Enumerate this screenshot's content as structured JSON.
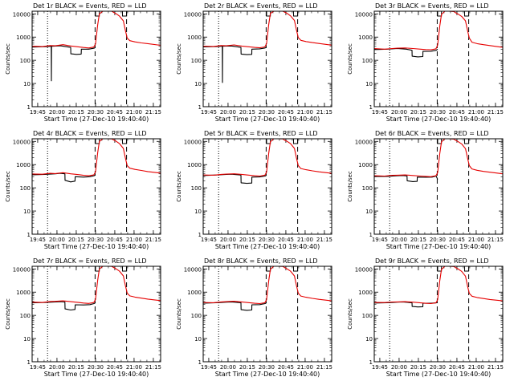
{
  "figure": {
    "rows": 3,
    "cols": 3,
    "colors": {
      "events": "#000000",
      "lld": "#e60000",
      "axes": "#000000",
      "background": "#ffffff"
    },
    "xaxis": {
      "label": "Start Time (27-Dec-10 19:40:40)",
      "tick_labels": [
        "19:45",
        "20:00",
        "20:15",
        "20:30",
        "20:45",
        "21:00",
        "21:15"
      ],
      "tick_values_min": [
        4.33,
        19.33,
        34.33,
        49.33,
        64.33,
        79.33,
        94.33
      ],
      "xlim_min": [
        0,
        100
      ]
    },
    "yaxis": {
      "label": "Counts/sec",
      "scale": "log",
      "tick_labels": [
        "1",
        "10",
        "100",
        "1000",
        "10000"
      ],
      "tick_values": [
        1,
        10,
        100,
        1000,
        10000
      ],
      "ylim": [
        1,
        13000
      ]
    }
  },
  "chart_data": [
    {
      "type": "line",
      "title": "Det 1r BLACK = Events, RED = LLD",
      "xlabel": "Start Time (27-Dec-10 19:40:40)",
      "ylabel": "Counts/sec",
      "markers": {
        "dotted_x": [
          12
        ],
        "dashed_x": [
          49,
          73.5
        ]
      },
      "rect_markers_x": [
        [
          49.2,
          52.3
        ],
        [
          70.3,
          73.5
        ]
      ],
      "series": [
        {
          "name": "Events",
          "color": "#000000",
          "x": [
            0,
            10,
            14.9,
            15,
            15.1,
            22,
            30,
            30.1,
            34.5,
            38.2,
            38.3,
            44,
            48.2,
            49.3
          ],
          "y": [
            370,
            385,
            400,
            13,
            400,
            420,
            360,
            190,
            180,
            185,
            300,
            300,
            330,
            360
          ]
        },
        {
          "name": "LLD",
          "color": "#e60000",
          "x": [
            0,
            8,
            14,
            18,
            24,
            30,
            36,
            40,
            44,
            48,
            49.3,
            51,
            52.3,
            55,
            58,
            62,
            63.5,
            65,
            68,
            71,
            72.5,
            74,
            76,
            80,
            85,
            90,
            100
          ],
          "y": [
            400,
            390,
            430,
            420,
            470,
            415,
            380,
            355,
            340,
            370,
            500,
            3300,
            10000,
            14000,
            14000,
            13000,
            11500,
            10500,
            8000,
            5000,
            2000,
            900,
            700,
            620,
            560,
            520,
            440
          ]
        }
      ]
    },
    {
      "type": "line",
      "title": "Det 2r BLACK = Events, RED = LLD",
      "xlabel": "Start Time (27-Dec-10 19:40:40)",
      "ylabel": "Counts/sec",
      "markers": {
        "dotted_x": [
          12
        ],
        "dashed_x": [
          49,
          73.5
        ]
      },
      "rect_markers_x": [
        [
          49.2,
          52.3
        ],
        [
          70.3,
          73.5
        ]
      ],
      "series": [
        {
          "name": "Events",
          "color": "#000000",
          "x": [
            0,
            10,
            14.9,
            15,
            15.1,
            22,
            29.4,
            29.5,
            34,
            37.8,
            37.9,
            44,
            48.2,
            49.3
          ],
          "y": [
            375,
            390,
            405,
            11,
            405,
            415,
            360,
            185,
            175,
            180,
            300,
            310,
            340,
            370
          ]
        },
        {
          "name": "LLD",
          "color": "#e60000",
          "x": [
            0,
            8,
            14,
            18,
            24,
            30,
            36,
            40,
            44,
            48,
            49.3,
            51,
            52.3,
            55,
            58,
            62,
            63.5,
            65,
            68,
            71,
            72.5,
            74,
            76,
            80,
            85,
            90,
            100
          ],
          "y": [
            405,
            395,
            430,
            420,
            460,
            410,
            380,
            360,
            345,
            375,
            520,
            3500,
            10500,
            14000,
            14000,
            13000,
            11800,
            10800,
            8200,
            5200,
            2100,
            950,
            720,
            640,
            580,
            530,
            450
          ]
        }
      ]
    },
    {
      "type": "line",
      "title": "Det 3r BLACK = Events, RED = LLD",
      "xlabel": "Start Time (27-Dec-10 19:40:40)",
      "ylabel": "Counts/sec",
      "markers": {
        "dotted_x": [
          12
        ],
        "dashed_x": [
          49,
          73.5
        ]
      },
      "rect_markers_x": [
        [
          49.2,
          52.3
        ],
        [
          70.3,
          73.5
        ]
      ],
      "series": [
        {
          "name": "Events",
          "color": "#000000",
          "x": [
            0,
            10,
            18,
            25,
            29.4,
            29.5,
            34,
            37.8,
            37.9,
            44,
            48.2,
            49.3
          ],
          "y": [
            290,
            300,
            320,
            300,
            270,
            150,
            140,
            145,
            240,
            245,
            270,
            300
          ]
        },
        {
          "name": "LLD",
          "color": "#e60000",
          "x": [
            0,
            8,
            14,
            18,
            24,
            30,
            36,
            40,
            44,
            48,
            49.3,
            51,
            52.3,
            55,
            58,
            62,
            63.5,
            65,
            68,
            71,
            72.5,
            74,
            76,
            80,
            85,
            90,
            100
          ],
          "y": [
            320,
            300,
            320,
            330,
            340,
            320,
            300,
            290,
            285,
            310,
            450,
            3000,
            9500,
            13000,
            13500,
            12500,
            11000,
            10000,
            7800,
            5000,
            2000,
            900,
            600,
            520,
            470,
            430,
            360
          ]
        }
      ]
    },
    {
      "type": "line",
      "title": "Det 4r BLACK = Events, RED = LLD",
      "xlabel": "Start Time (27-Dec-10 19:40:40)",
      "ylabel": "Counts/sec",
      "markers": {
        "dotted_x": [
          12
        ],
        "dashed_x": [
          49,
          73.5
        ]
      },
      "rect_markers_x": [
        [
          49.2,
          52.3
        ],
        [
          70.3,
          73.5
        ]
      ],
      "series": [
        {
          "name": "Events",
          "color": "#000000",
          "x": [
            0,
            10,
            18,
            22,
            25.5,
            25.6,
            30,
            33.4,
            33.5,
            40,
            45,
            48.2,
            49.3
          ],
          "y": [
            365,
            380,
            400,
            420,
            400,
            210,
            180,
            195,
            300,
            290,
            300,
            330,
            360
          ]
        },
        {
          "name": "LLD",
          "color": "#e60000",
          "x": [
            0,
            8,
            14,
            18,
            24,
            30,
            36,
            40,
            44,
            48,
            49.3,
            51,
            52.3,
            55,
            58,
            62,
            63.5,
            65,
            68,
            71,
            72.5,
            74,
            76,
            80,
            85,
            90,
            100
          ],
          "y": [
            395,
            385,
            420,
            410,
            450,
            400,
            370,
            345,
            330,
            360,
            480,
            3200,
            9800,
            14000,
            14000,
            12800,
            11500,
            10500,
            8000,
            5000,
            2000,
            900,
            700,
            620,
            560,
            500,
            430
          ]
        }
      ]
    },
    {
      "type": "line",
      "title": "Det 5r BLACK = Events, RED = LLD",
      "xlabel": "Start Time (27-Dec-10 19:40:40)",
      "ylabel": "Counts/sec",
      "markers": {
        "dotted_x": [
          12
        ],
        "dashed_x": [
          49,
          73.5
        ]
      },
      "rect_markers_x": [
        [
          49.2,
          52.3
        ],
        [
          70.3,
          73.5
        ]
      ],
      "series": [
        {
          "name": "Events",
          "color": "#000000",
          "x": [
            0,
            10,
            18,
            22,
            29.4,
            29.5,
            34,
            37.8,
            37.9,
            44,
            48.2,
            49.3
          ],
          "y": [
            340,
            355,
            375,
            385,
            355,
            165,
            155,
            160,
            290,
            295,
            320,
            350
          ]
        },
        {
          "name": "LLD",
          "color": "#e60000",
          "x": [
            0,
            8,
            14,
            18,
            24,
            30,
            36,
            40,
            44,
            48,
            49.3,
            51,
            52.3,
            55,
            58,
            62,
            63.5,
            65,
            68,
            71,
            72.5,
            74,
            76,
            80,
            85,
            90,
            100
          ],
          "y": [
            360,
            350,
            380,
            390,
            400,
            380,
            350,
            330,
            320,
            350,
            470,
            3100,
            9700,
            13500,
            13800,
            12800,
            11200,
            10300,
            8000,
            5000,
            2000,
            900,
            680,
            600,
            540,
            490,
            420
          ]
        }
      ]
    },
    {
      "type": "line",
      "title": "Det 6r BLACK = Events, RED = LLD",
      "xlabel": "Start Time (27-Dec-10 19:40:40)",
      "ylabel": "Counts/sec",
      "markers": {
        "dotted_x": [
          12
        ],
        "dashed_x": [
          49,
          73.5
        ]
      },
      "rect_markers_x": [
        [
          49.2,
          52.3
        ],
        [
          70.3,
          73.5
        ]
      ],
      "series": [
        {
          "name": "Events",
          "color": "#000000",
          "x": [
            0,
            10,
            18,
            22,
            25.5,
            25.6,
            30,
            33.4,
            33.5,
            40,
            45,
            48.2,
            49.3
          ],
          "y": [
            305,
            310,
            330,
            340,
            325,
            200,
            185,
            190,
            290,
            285,
            290,
            320,
            230
          ]
        },
        {
          "name": "LLD",
          "color": "#e60000",
          "x": [
            0,
            8,
            14,
            18,
            24,
            30,
            36,
            40,
            44,
            48,
            49.3,
            51,
            52.3,
            55,
            58,
            62,
            63.5,
            65,
            68,
            71,
            72.5,
            74,
            76,
            80,
            85,
            90,
            100
          ],
          "y": [
            330,
            320,
            345,
            350,
            360,
            340,
            320,
            310,
            300,
            330,
            450,
            3000,
            9500,
            13200,
            13500,
            12500,
            11000,
            10000,
            7800,
            4900,
            2000,
            900,
            650,
            570,
            510,
            470,
            400
          ]
        }
      ]
    },
    {
      "type": "line",
      "title": "Det 7r BLACK = Events, RED = LLD",
      "xlabel": "Start Time (27-Dec-10 19:40:40)",
      "ylabel": "Counts/sec",
      "markers": {
        "dotted_x": [
          12
        ],
        "dashed_x": [
          49,
          73.5
        ]
      },
      "rect_markers_x": [
        [
          49.2,
          52.3
        ],
        [
          70.3,
          73.5
        ]
      ],
      "series": [
        {
          "name": "Events",
          "color": "#000000",
          "x": [
            0,
            10,
            18,
            22,
            25.5,
            25.6,
            30,
            33.4,
            33.5,
            40,
            45,
            48.2,
            49.3
          ],
          "y": [
            345,
            360,
            380,
            390,
            375,
            190,
            170,
            180,
            285,
            280,
            290,
            320,
            350
          ]
        },
        {
          "name": "LLD",
          "color": "#e60000",
          "x": [
            0,
            8,
            14,
            18,
            24,
            30,
            36,
            40,
            44,
            48,
            49.3,
            51,
            52.3,
            55,
            58,
            62,
            63.5,
            65,
            68,
            71,
            72.5,
            74,
            76,
            80,
            85,
            90,
            100
          ],
          "y": [
            370,
            360,
            395,
            400,
            420,
            390,
            360,
            340,
            325,
            355,
            480,
            3200,
            9800,
            13800,
            14000,
            12900,
            11400,
            10400,
            8000,
            5000,
            2000,
            900,
            690,
            610,
            550,
            500,
            430
          ]
        }
      ]
    },
    {
      "type": "line",
      "title": "Det 8r BLACK = Events, RED = LLD",
      "xlabel": "Start Time (27-Dec-10 19:40:40)",
      "ylabel": "Counts/sec",
      "markers": {
        "dotted_x": [
          12
        ],
        "dashed_x": [
          49,
          73.5
        ]
      },
      "rect_markers_x": [
        [
          49.2,
          52.3
        ],
        [
          70.3,
          73.5
        ]
      ],
      "series": [
        {
          "name": "Events",
          "color": "#000000",
          "x": [
            0,
            10,
            18,
            22,
            29.4,
            29.5,
            34,
            37.8,
            37.9,
            44,
            48.2,
            49.3
          ],
          "y": [
            335,
            350,
            370,
            380,
            350,
            175,
            165,
            170,
            285,
            290,
            320,
            350
          ]
        },
        {
          "name": "LLD",
          "color": "#e60000",
          "x": [
            0,
            8,
            14,
            18,
            24,
            30,
            36,
            40,
            44,
            48,
            49.3,
            51,
            52.3,
            55,
            58,
            62,
            63.5,
            65,
            68,
            71,
            72.5,
            74,
            76,
            80,
            85,
            90,
            100
          ],
          "y": [
            360,
            350,
            380,
            390,
            405,
            380,
            350,
            330,
            320,
            350,
            470,
            3100,
            9700,
            13600,
            13900,
            12800,
            11300,
            10300,
            8000,
            5000,
            2000,
            900,
            680,
            600,
            540,
            490,
            420
          ]
        }
      ]
    },
    {
      "type": "line",
      "title": "Det 9r BLACK = Events, RED = LLD",
      "xlabel": "Start Time (27-Dec-10 19:40:40)",
      "ylabel": "Counts/sec",
      "markers": {
        "dotted_x": [
          12
        ],
        "dashed_x": [
          49,
          73.5
        ]
      },
      "rect_markers_x": [
        [
          49.2,
          52.3
        ],
        [
          70.3,
          73.5
        ]
      ],
      "series": [
        {
          "name": "Events",
          "color": "#000000",
          "x": [
            0,
            10,
            18,
            22,
            29.4,
            29.5,
            34,
            37.8,
            37.9,
            44,
            48.2,
            49.3
          ],
          "y": [
            340,
            350,
            370,
            375,
            350,
            240,
            230,
            235,
            330,
            330,
            345,
            370
          ]
        },
        {
          "name": "LLD",
          "color": "#e60000",
          "x": [
            0,
            8,
            14,
            18,
            24,
            30,
            36,
            40,
            44,
            48,
            49.3,
            51,
            52.3,
            55,
            58,
            62,
            63.5,
            65,
            68,
            71,
            72.5,
            74,
            76,
            80,
            85,
            90,
            100
          ],
          "y": [
            360,
            355,
            375,
            380,
            390,
            370,
            345,
            330,
            320,
            345,
            470,
            3100,
            9600,
            13500,
            13800,
            12700,
            11200,
            10200,
            7900,
            4900,
            1900,
            880,
            670,
            590,
            530,
            480,
            420
          ]
        }
      ]
    }
  ]
}
